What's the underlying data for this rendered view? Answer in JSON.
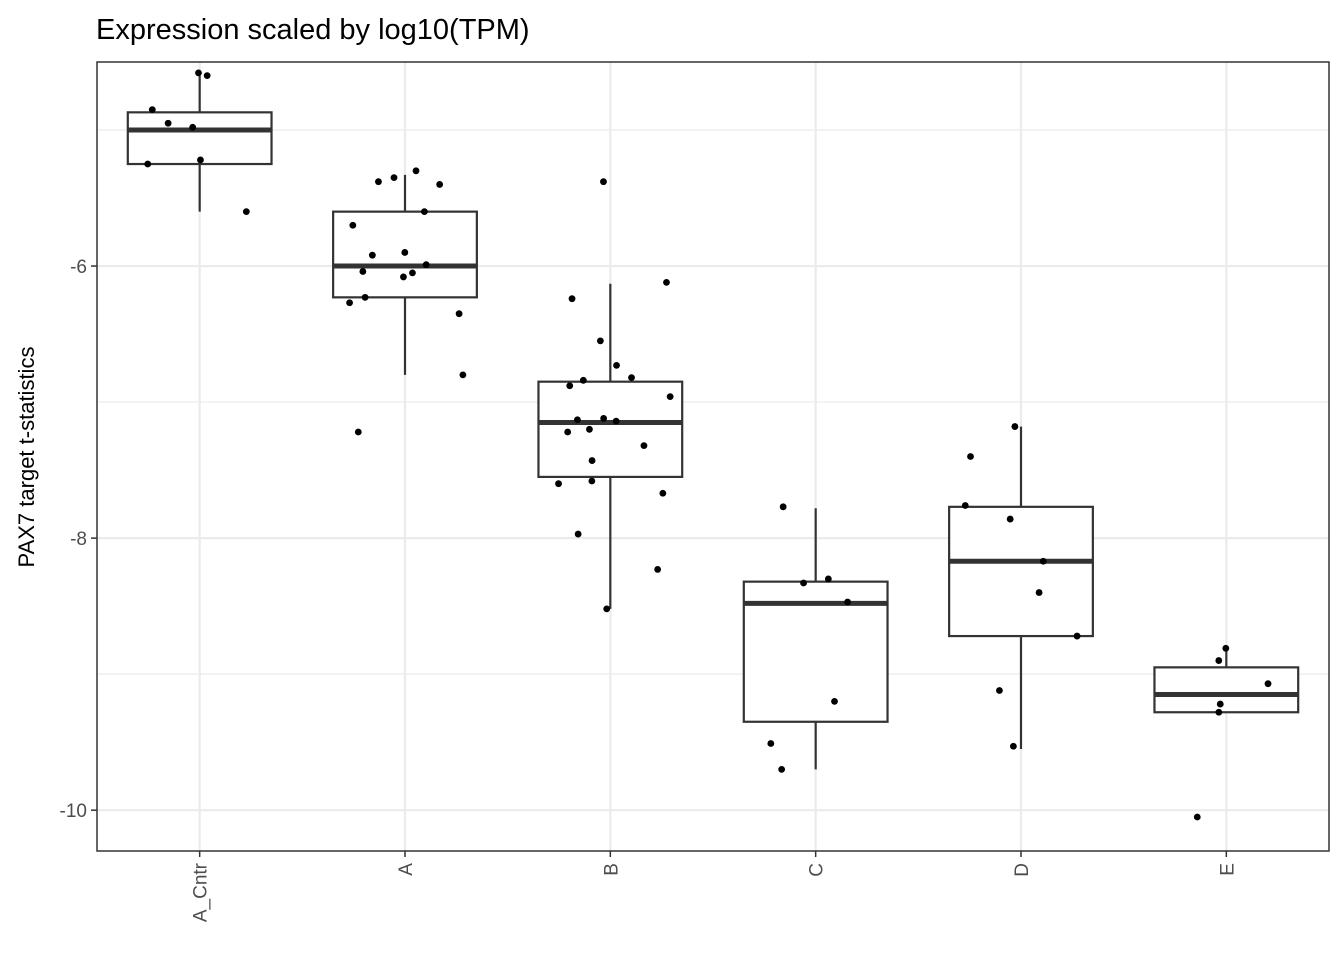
{
  "chart_data": {
    "type": "box",
    "title": "Expression scaled by log10(TPM)",
    "xlabel": "",
    "ylabel": "PAX7 target t-statistics",
    "categories": [
      "A_Cntr",
      "A",
      "B",
      "C",
      "D",
      "E"
    ],
    "ylim": [
      -10.3,
      -4.5
    ],
    "yticks": [
      -6,
      -8,
      -10
    ],
    "grid": true,
    "boxes": [
      {
        "category": "A_Cntr",
        "whisker_low": -5.6,
        "q1": -5.25,
        "median": -5.0,
        "q3": -4.87,
        "whisker_high": -4.6
      },
      {
        "category": "A",
        "whisker_low": -6.8,
        "q1": -6.23,
        "median": -6.0,
        "q3": -5.6,
        "whisker_high": -5.33
      },
      {
        "category": "B",
        "whisker_low": -8.52,
        "q1": -7.55,
        "median": -7.15,
        "q3": -6.85,
        "whisker_high": -6.13
      },
      {
        "category": "C",
        "whisker_low": -9.7,
        "q1": -9.35,
        "median": -8.48,
        "q3": -8.32,
        "whisker_high": -7.78
      },
      {
        "category": "D",
        "whisker_low": -9.55,
        "q1": -8.72,
        "median": -8.17,
        "q3": -7.77,
        "whisker_high": -7.18
      },
      {
        "category": "E",
        "whisker_low": -9.28,
        "q1": -9.28,
        "median": -9.15,
        "q3": -8.95,
        "whisker_high": -8.82
      }
    ],
    "points": [
      {
        "category": "A_Cntr",
        "values": [
          -4.58,
          -4.6,
          -4.85,
          -4.95,
          -4.98,
          -5.22,
          -5.25,
          -5.6
        ]
      },
      {
        "category": "A",
        "values": [
          -5.3,
          -5.35,
          -5.38,
          -5.4,
          -5.6,
          -5.7,
          -5.9,
          -5.92,
          -5.99,
          -6.04,
          -6.05,
          -6.08,
          -6.23,
          -6.27,
          -6.35,
          -6.8,
          -7.22
        ]
      },
      {
        "category": "B",
        "values": [
          -5.38,
          -6.12,
          -6.24,
          -6.55,
          -6.73,
          -6.82,
          -6.84,
          -6.88,
          -6.96,
          -7.12,
          -7.13,
          -7.14,
          -7.2,
          -7.22,
          -7.32,
          -7.43,
          -7.58,
          -7.6,
          -7.67,
          -7.97,
          -8.23,
          -8.52
        ]
      },
      {
        "category": "C",
        "values": [
          -7.77,
          -8.3,
          -8.33,
          -8.47,
          -9.2,
          -9.51,
          -9.7
        ]
      },
      {
        "category": "D",
        "values": [
          -7.18,
          -7.4,
          -7.76,
          -7.86,
          -8.17,
          -8.4,
          -8.72,
          -9.12,
          -9.53
        ]
      },
      {
        "category": "E",
        "values": [
          -8.81,
          -8.9,
          -9.07,
          -9.22,
          -9.28,
          -10.05
        ]
      }
    ]
  }
}
